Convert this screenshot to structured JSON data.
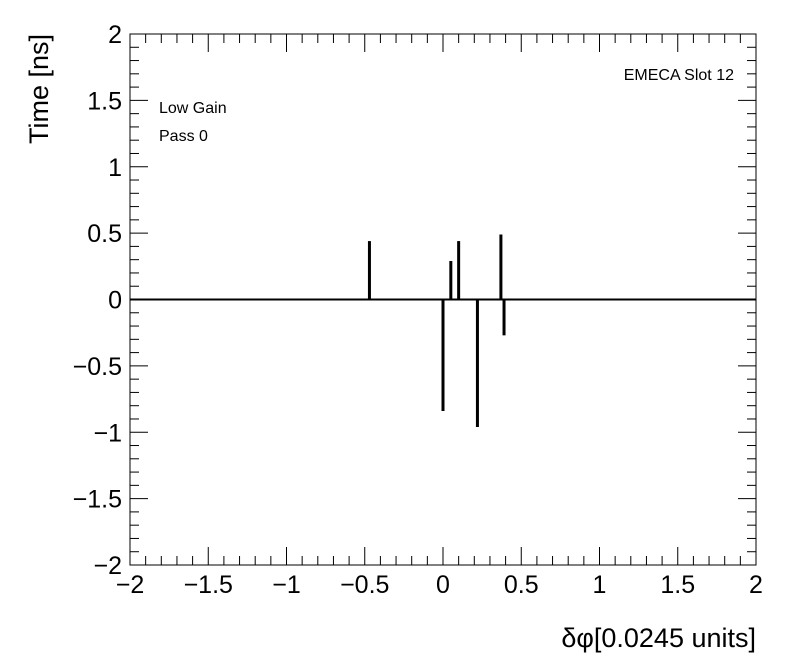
{
  "chart_data": {
    "type": "bar",
    "title": "",
    "xlabel": "δφ[0.0245 units]",
    "ylabel": "Time [ns]",
    "xlim": [
      -2,
      2
    ],
    "ylim": [
      -2,
      2
    ],
    "x_ticks": [
      -2,
      -1.5,
      -1,
      -0.5,
      0,
      0.5,
      1,
      1.5,
      2
    ],
    "x_tick_labels": [
      "−2",
      "−1.5",
      "−1",
      "−0.5",
      "0",
      "0.5",
      "1",
      "1.5",
      "2"
    ],
    "y_ticks": [
      -2,
      -1.5,
      -1,
      -0.5,
      0,
      0.5,
      1,
      1.5,
      2
    ],
    "y_tick_labels": [
      "−2",
      "−1.5",
      "−1",
      "−0.5",
      "0",
      "0.5",
      "1",
      "1.5",
      "2"
    ],
    "annotations": [
      "Low Gain",
      "Pass 0",
      "EMECA Slot 12"
    ],
    "series": [
      {
        "x": [
          -0.47,
          0.0,
          0.05,
          0.1,
          0.22,
          0.37,
          0.39
        ],
        "values": [
          0.44,
          -0.84,
          0.29,
          0.44,
          -0.96,
          0.49,
          -0.27
        ]
      }
    ],
    "grid": false,
    "legend": "none",
    "color": "#000000"
  }
}
